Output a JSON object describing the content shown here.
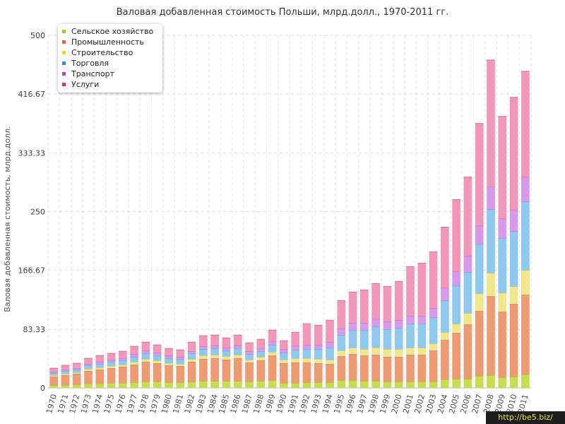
{
  "chart_data": {
    "type": "bar",
    "stacked": true,
    "title": "Валовая добавленная стоимость Польши, млрд.долл., 1970-2011 гг.",
    "xlabel": "",
    "ylabel": "Валовая добавленная стоимость, млрд.долл.",
    "ylim": [
      0,
      500
    ],
    "yticks": [
      "0",
      "83.33",
      "166.67",
      "250",
      "333.33",
      "416.67",
      "500"
    ],
    "grid": true,
    "legend_position": "top-left",
    "categories": [
      "1970",
      "1971",
      "1972",
      "1973",
      "1974",
      "1975",
      "1976",
      "1977",
      "1978",
      "1979",
      "1980",
      "1981",
      "1982",
      "1983",
      "1984",
      "1985",
      "1986",
      "1987",
      "1988",
      "1989",
      "1990",
      "1991",
      "1992",
      "1993",
      "1994",
      "1995",
      "1996",
      "1997",
      "1998",
      "1999",
      "2000",
      "2001",
      "2002",
      "2003",
      "2004",
      "2005",
      "2006",
      "2007",
      "2008",
      "2009",
      "2010",
      "2011"
    ],
    "series": [
      {
        "name": "Сельское хозяйство",
        "color": "#c8dc50",
        "values": [
          4,
          4,
          5,
          6,
          6,
          7,
          7,
          8,
          9,
          9,
          8,
          8,
          9,
          10,
          10,
          10,
          10,
          9,
          10,
          11,
          7,
          7,
          8,
          8,
          8,
          11,
          11,
          10,
          10,
          9,
          9,
          9,
          9,
          9,
          12,
          13,
          13,
          17,
          18,
          15,
          16,
          19
        ]
      },
      {
        "name": "Промышленность",
        "color": "#ee9a72",
        "values": [
          12,
          14,
          15,
          18,
          20,
          21,
          23,
          25,
          28,
          26,
          24,
          23,
          28,
          31,
          32,
          30,
          32,
          27,
          29,
          35,
          28,
          29,
          28,
          27,
          26,
          34,
          37,
          36,
          37,
          35,
          35,
          38,
          38,
          44,
          56,
          65,
          77,
          92,
          112,
          93,
          103,
          113
        ]
      },
      {
        "name": "Строительство",
        "color": "#f0e68c",
        "values": [
          2,
          2,
          2,
          3,
          3,
          3,
          3,
          4,
          4,
          4,
          3,
          3,
          4,
          5,
          5,
          5,
          5,
          4,
          5,
          5,
          5,
          6,
          6,
          6,
          6,
          8,
          9,
          9,
          10,
          11,
          11,
          10,
          10,
          10,
          11,
          13,
          16,
          25,
          33,
          27,
          25,
          35
        ]
      },
      {
        "name": "Торговля",
        "color": "#8ec8ee",
        "values": [
          3,
          4,
          4,
          5,
          5,
          6,
          6,
          7,
          8,
          7,
          7,
          7,
          8,
          9,
          9,
          8,
          9,
          8,
          8,
          10,
          10,
          12,
          13,
          14,
          17,
          22,
          25,
          27,
          30,
          28,
          30,
          34,
          34,
          37,
          45,
          54,
          58,
          70,
          90,
          77,
          78,
          97
        ]
      },
      {
        "name": "Транспорт",
        "color": "#d898ec",
        "values": [
          2,
          2,
          2,
          2,
          3,
          3,
          3,
          4,
          4,
          4,
          4,
          3,
          3,
          4,
          4,
          4,
          4,
          4,
          4,
          5,
          5,
          6,
          6,
          6,
          8,
          9,
          10,
          10,
          11,
          11,
          11,
          11,
          11,
          13,
          18,
          20,
          23,
          26,
          32,
          28,
          30,
          35
        ]
      },
      {
        "name": "Услуги",
        "color": "#f296ba",
        "values": [
          5,
          6,
          7,
          8,
          9,
          9,
          10,
          11,
          12,
          11,
          10,
          10,
          13,
          15,
          15,
          14,
          15,
          12,
          13,
          16,
          12,
          19,
          30,
          28,
          31,
          40,
          44,
          47,
          50,
          50,
          55,
          70,
          75,
          80,
          86,
          102,
          112,
          145,
          180,
          145,
          160,
          150
        ]
      }
    ]
  },
  "watermark": "http://be5.biz/"
}
